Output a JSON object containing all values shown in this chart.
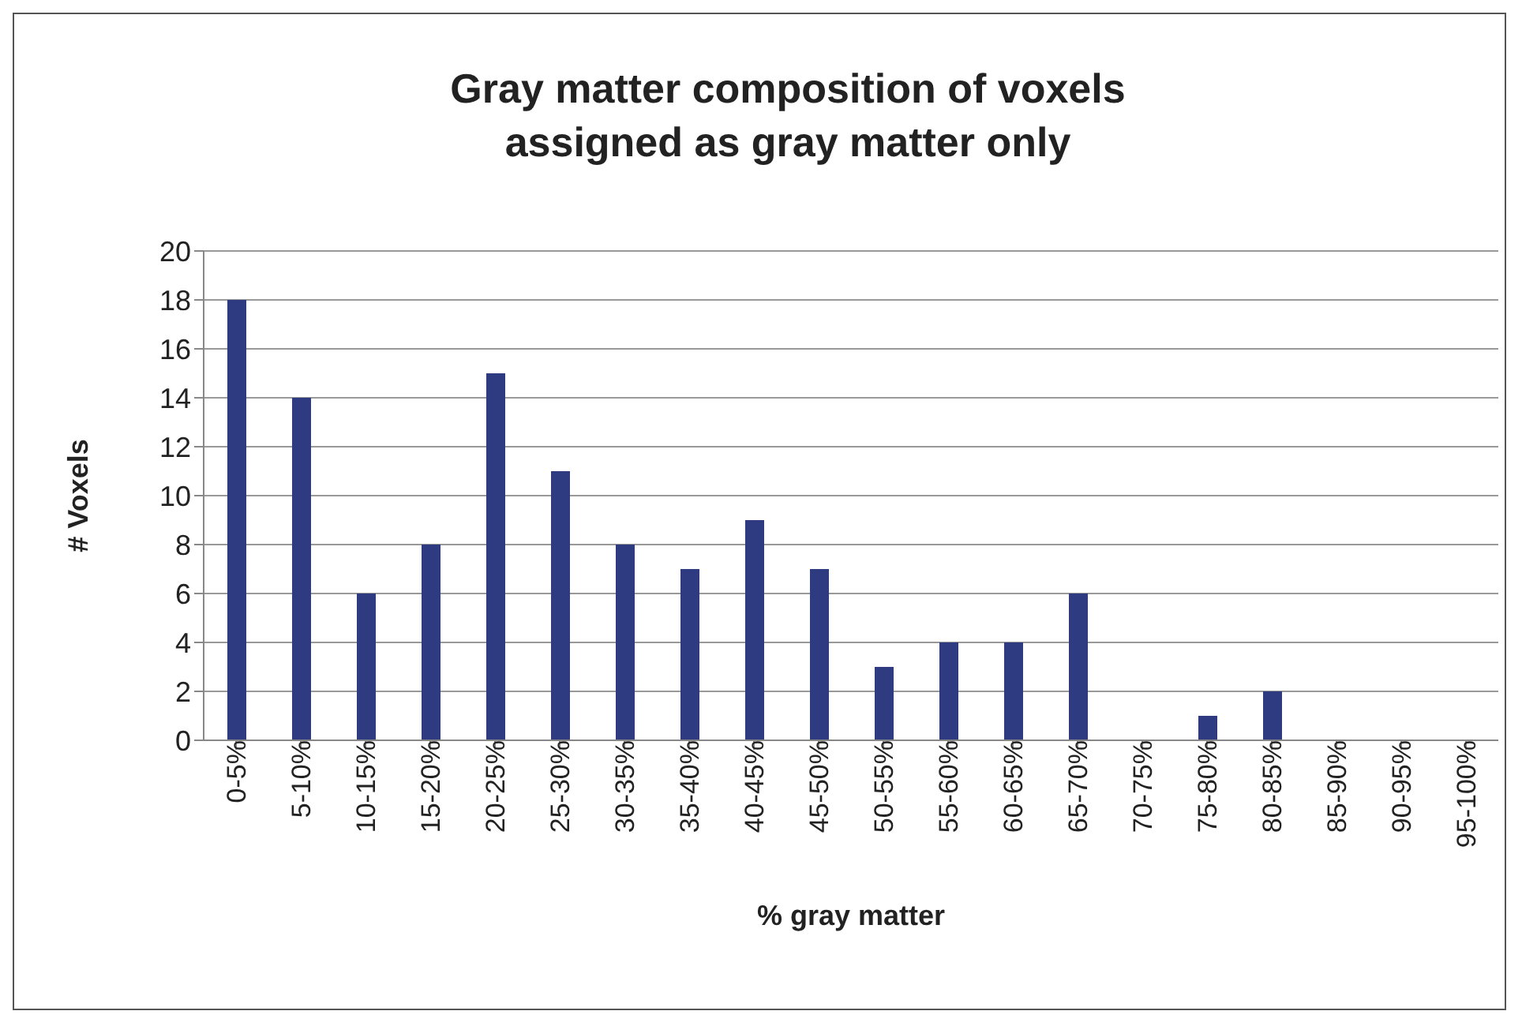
{
  "chart_data": {
    "type": "bar",
    "title": "Gray matter composition of voxels assigned as gray matter only",
    "xlabel": "% gray matter",
    "ylabel": "# Voxels",
    "categories": [
      "0-5%",
      "5-10%",
      "10-15%",
      "15-20%",
      "20-25%",
      "25-30%",
      "30-35%",
      "35-40%",
      "40-45%",
      "45-50%",
      "50-55%",
      "55-60%",
      "60-65%",
      "65-70%",
      "70-75%",
      "75-80%",
      "80-85%",
      "85-90%",
      "90-95%",
      "95-100%"
    ],
    "values": [
      18,
      14,
      6,
      8,
      15,
      11,
      8,
      7,
      9,
      7,
      3,
      4,
      4,
      6,
      0,
      1,
      2,
      0,
      0,
      0
    ],
    "color": "#2e3b80",
    "ylim": [
      0,
      20
    ],
    "yticks": [
      0,
      2,
      4,
      6,
      8,
      10,
      12,
      14,
      16,
      18,
      20
    ],
    "grid": "y"
  }
}
